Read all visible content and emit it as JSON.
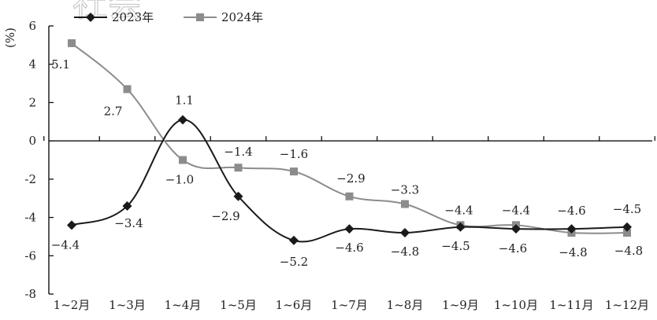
{
  "chart_data": {
    "type": "line",
    "categories": [
      "1~2月",
      "1~3月",
      "1~4月",
      "1~5月",
      "1~6月",
      "1~7月",
      "1~8月",
      "1~9月",
      "1~10月",
      "1~11月",
      "1~12月"
    ],
    "series": [
      {
        "name": "2023年",
        "color": "#1a1a1a",
        "marker": "diamond",
        "values": [
          -4.4,
          -3.4,
          1.1,
          -2.9,
          -5.2,
          -4.6,
          -4.8,
          -4.5,
          -4.6,
          -4.6,
          -4.5
        ],
        "labels": [
          "−4.4",
          "−3.4",
          "1.1",
          "−2.9",
          "−5.2",
          "−4.6",
          "−4.8",
          "−4.5",
          "−4.6",
          "−4.6",
          "−4.5"
        ]
      },
      {
        "name": "2024年",
        "color": "#8c8c8c",
        "marker": "square",
        "values": [
          5.1,
          2.7,
          -1.0,
          -1.4,
          -1.6,
          -2.9,
          -3.3,
          -4.4,
          -4.4,
          -4.8,
          -4.8
        ],
        "labels": [
          "5.1",
          "2.7",
          "−1.0",
          "−1.4",
          "−1.6",
          "−2.9",
          "−3.3",
          "−4.4",
          "−4.4",
          "−4.8",
          "−4.8"
        ]
      }
    ],
    "ylabel": "%",
    "ylim": [
      -8,
      6
    ],
    "yticks": [
      6,
      4,
      2,
      0,
      -2,
      -4,
      -6,
      -8
    ],
    "ytick_labels": [
      "6",
      "4",
      "2",
      "0",
      "-2",
      "-4",
      "-6",
      "-8"
    ],
    "grid": false,
    "legend": "top-left",
    "watermark": "社会"
  }
}
